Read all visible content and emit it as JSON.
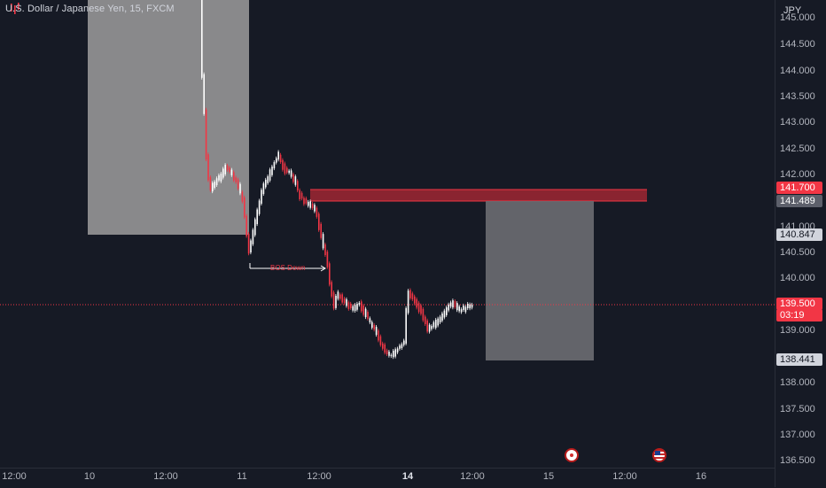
{
  "header": {
    "title": "U.S. Dollar / Japanese Yen, 15, FXCM"
  },
  "price_axis": {
    "currency": "JPY",
    "ticks": [
      "145.000",
      "144.500",
      "144.000",
      "143.500",
      "143.000",
      "142.500",
      "142.000",
      "141.000",
      "140.500",
      "140.000",
      "139.000",
      "138.000",
      "137.500",
      "137.000",
      "136.500"
    ],
    "tags": {
      "zone_top": "141.700",
      "zone_bottom": "141.489",
      "box_top": "140.847",
      "last_price": "139.500",
      "countdown": "03:19",
      "target": "138.441"
    }
  },
  "time_axis": {
    "labels": [
      "12:00",
      "10",
      "12:00",
      "11",
      "12:00",
      "14",
      "12:00",
      "15",
      "12:00",
      "16"
    ]
  },
  "annotations": {
    "bos_label": "BOS Down"
  },
  "events": {
    "jp_icon": "japan-flag-icon",
    "us_icon": "us-flag-icon"
  },
  "colors": {
    "background": "#161a25",
    "up_candle": "#ffffff",
    "down_candle": "#f23645",
    "last_price_tag": "#f23645",
    "zone_fill": "#b2283499",
    "box_fill": "#9e9e9e",
    "target_tag": "#d1d4dc"
  }
}
